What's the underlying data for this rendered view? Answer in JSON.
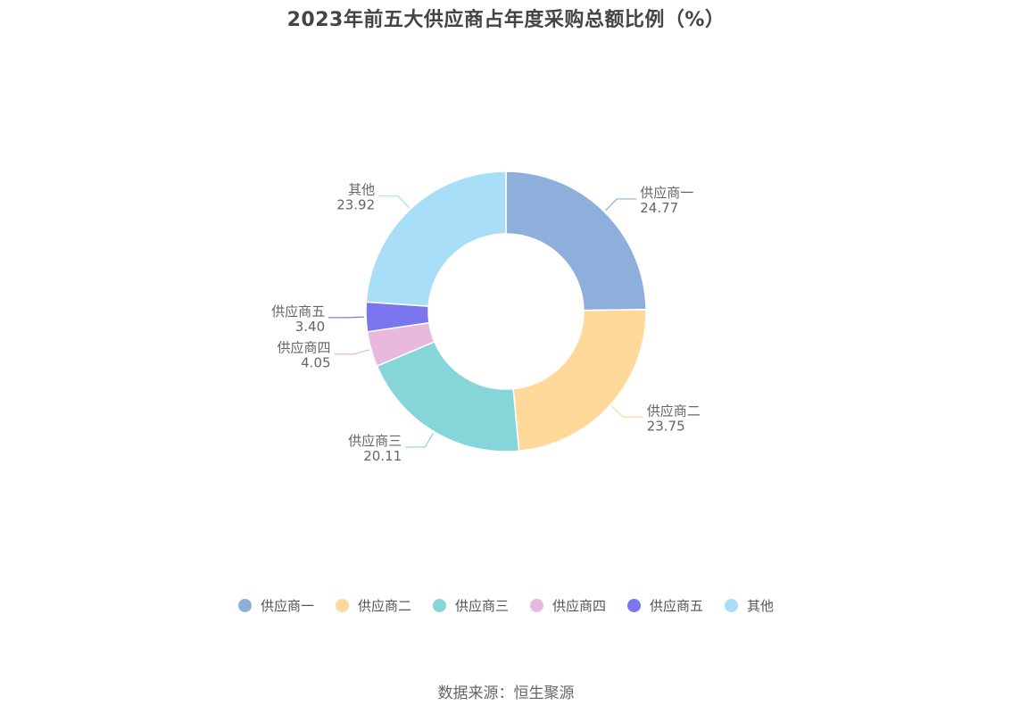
{
  "chart_data": {
    "type": "pie",
    "donut": true,
    "title": "2023年前五大供应商占年度采购总额比例（%）",
    "categories": [
      "供应商一",
      "供应商二",
      "供应商三",
      "供应商四",
      "供应商五",
      "其他"
    ],
    "values": [
      24.77,
      23.75,
      20.11,
      4.05,
      3.4,
      23.92
    ],
    "value_labels": [
      "24.77",
      "23.75",
      "20.11",
      "4.05",
      "3.40",
      "23.92"
    ],
    "colors": [
      "#8EAEDC",
      "#FFD99A",
      "#86D5D9",
      "#E8B9DC",
      "#7B76F0",
      "#A9DEF9"
    ],
    "legend_position": "bottom"
  },
  "source": "数据来源：恒生聚源"
}
